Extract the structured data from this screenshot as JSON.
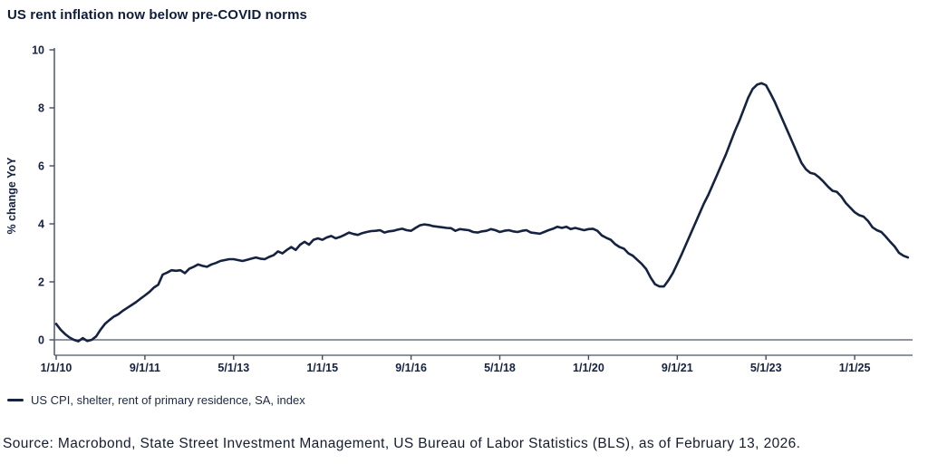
{
  "header": {
    "title": "US rent inflation now below pre-COVID norms"
  },
  "legend": {
    "label": "US CPI, shelter, rent of primary residence, SA, index"
  },
  "source": "Source: Macrobond, State Street Investment Management, US Bureau of Labor Statistics (BLS), as of February 13, 2026.",
  "colors": {
    "line": "#152240",
    "title_text": "#0f1d3a",
    "axis_gray": "#6a7280",
    "axis_dark": "#3f4c66",
    "background": "#ffffff"
  },
  "chart_data": {
    "type": "line",
    "title": "US rent inflation now below pre-COVID norms",
    "xlabel": "",
    "ylabel": "% change YoY",
    "ylim": [
      -0.5,
      10
    ],
    "grid": false,
    "legend_position": "bottom-left",
    "y_ticks": [
      0,
      2,
      4,
      6,
      8,
      10
    ],
    "x_tick_labels": [
      "1/1/10",
      "9/1/11",
      "5/1/13",
      "1/1/15",
      "9/1/16",
      "5/1/18",
      "1/1/20",
      "9/1/21",
      "5/1/23",
      "1/1/25"
    ],
    "x_months_per_tick": 20,
    "x_start": "2010-01",
    "x_end": "2026-01",
    "frequency": "monthly",
    "series": [
      {
        "name": "US CPI, shelter, rent of primary residence, SA, index",
        "color": "#152240",
        "values": [
          0.55,
          0.35,
          0.2,
          0.08,
          0.0,
          -0.05,
          0.06,
          -0.04,
          0.0,
          0.12,
          0.35,
          0.55,
          0.68,
          0.8,
          0.88,
          1.0,
          1.1,
          1.2,
          1.3,
          1.42,
          1.53,
          1.65,
          1.8,
          1.9,
          2.25,
          2.32,
          2.4,
          2.38,
          2.4,
          2.3,
          2.45,
          2.52,
          2.6,
          2.55,
          2.52,
          2.6,
          2.65,
          2.72,
          2.75,
          2.78,
          2.78,
          2.75,
          2.72,
          2.76,
          2.8,
          2.84,
          2.8,
          2.78,
          2.86,
          2.92,
          3.05,
          2.98,
          3.1,
          3.2,
          3.1,
          3.28,
          3.38,
          3.28,
          3.45,
          3.5,
          3.45,
          3.53,
          3.58,
          3.5,
          3.55,
          3.62,
          3.7,
          3.65,
          3.62,
          3.68,
          3.72,
          3.75,
          3.76,
          3.78,
          3.7,
          3.74,
          3.76,
          3.8,
          3.83,
          3.78,
          3.76,
          3.86,
          3.95,
          3.98,
          3.96,
          3.92,
          3.9,
          3.88,
          3.86,
          3.85,
          3.76,
          3.82,
          3.8,
          3.78,
          3.72,
          3.7,
          3.74,
          3.76,
          3.82,
          3.78,
          3.72,
          3.76,
          3.78,
          3.74,
          3.72,
          3.76,
          3.78,
          3.7,
          3.68,
          3.66,
          3.72,
          3.78,
          3.83,
          3.9,
          3.86,
          3.9,
          3.82,
          3.86,
          3.82,
          3.78,
          3.82,
          3.83,
          3.76,
          3.6,
          3.52,
          3.45,
          3.3,
          3.2,
          3.14,
          2.98,
          2.9,
          2.76,
          2.62,
          2.44,
          2.15,
          1.92,
          1.84,
          1.84,
          2.05,
          2.3,
          2.62,
          2.95,
          3.3,
          3.65,
          4.0,
          4.35,
          4.7,
          5.0,
          5.35,
          5.7,
          6.05,
          6.4,
          6.8,
          7.2,
          7.55,
          7.95,
          8.35,
          8.65,
          8.8,
          8.85,
          8.78,
          8.5,
          8.2,
          7.85,
          7.5,
          7.15,
          6.8,
          6.45,
          6.1,
          5.88,
          5.76,
          5.72,
          5.6,
          5.45,
          5.28,
          5.14,
          5.1,
          4.94,
          4.72,
          4.56,
          4.4,
          4.3,
          4.25,
          4.1,
          3.88,
          3.78,
          3.72,
          3.56,
          3.38,
          3.22,
          3.0,
          2.9,
          2.84
        ]
      }
    ]
  }
}
